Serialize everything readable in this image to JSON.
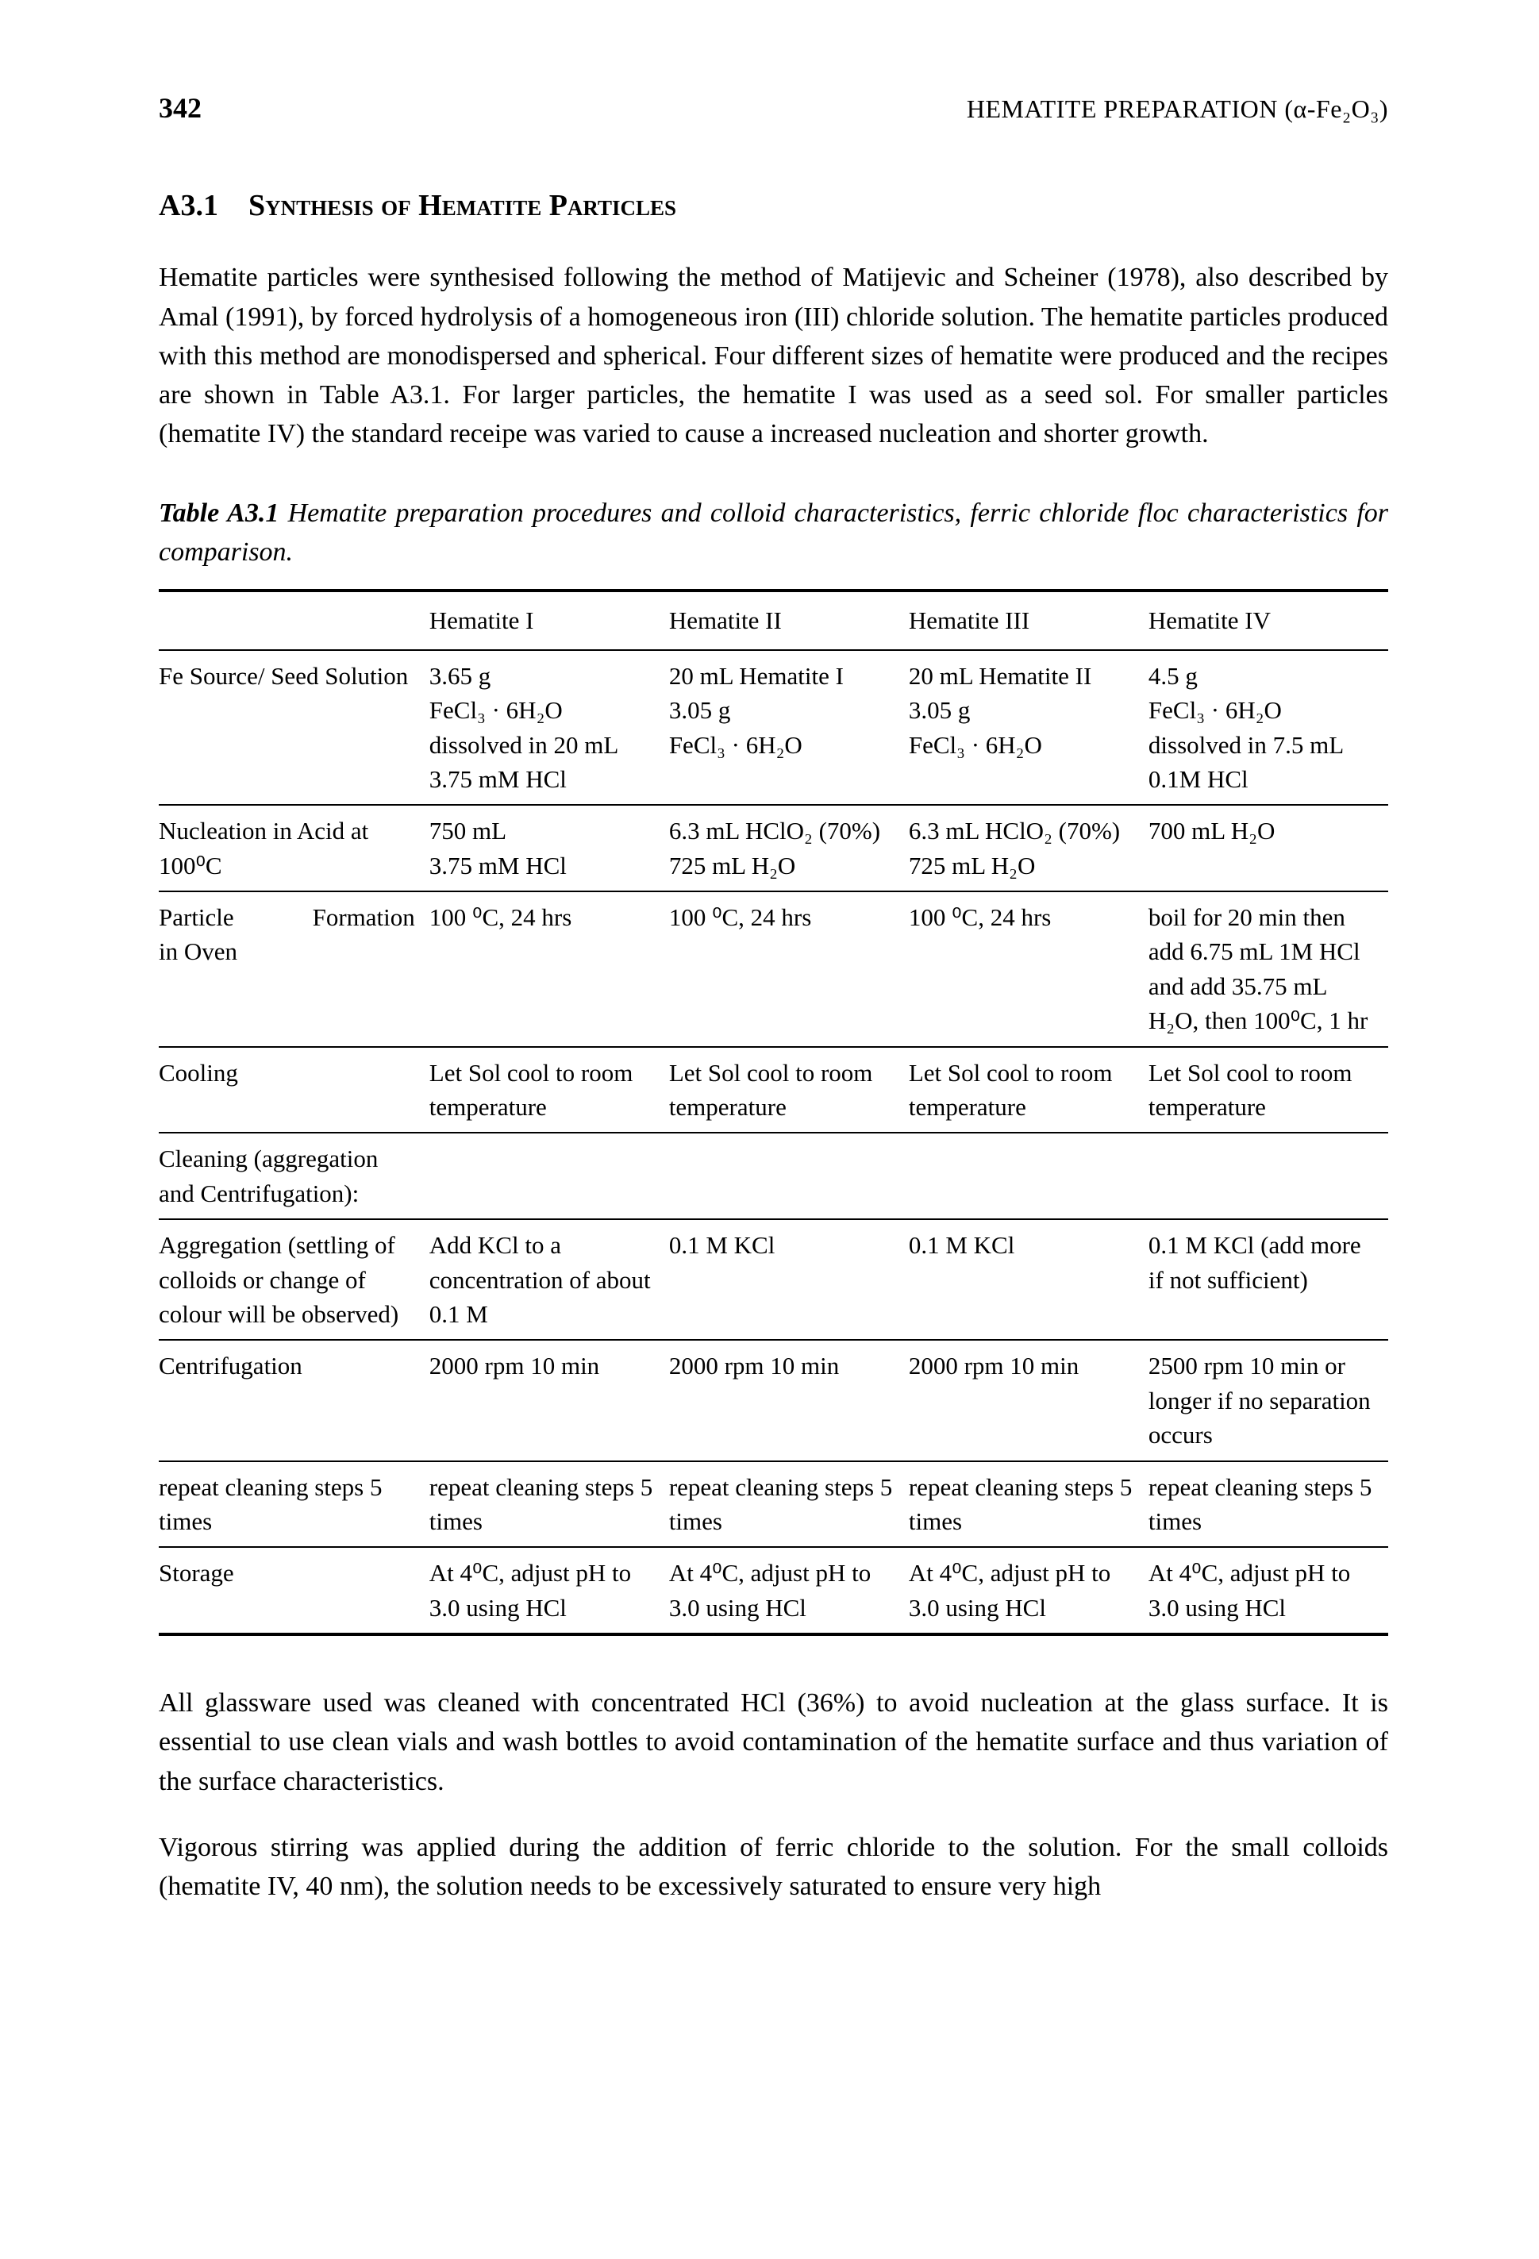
{
  "page_number": "342",
  "running_head": "HEMATITE PREPARATION (α-Fe₂O₃)",
  "section": {
    "number": "A3.1",
    "title_smallcaps_1": "Synthesis of Hematite Particles"
  },
  "paragraphs": {
    "p1": "Hematite particles were synthesised following the method of Matijevic and Scheiner (1978), also described by Amal (1991), by forced hydrolysis of a homogeneous iron (III) chloride solution. The hematite particles produced with this method are monodispersed and spherical. Four different sizes of hematite were produced and the recipes are shown in Table A3.1. For larger particles, the hematite I was used as a seed sol. For smaller particles (hematite IV) the standard receipe was varied to cause a increased nucleation and shorter growth.",
    "p2": "All glassware used was cleaned with concentrated HCl (36%) to avoid nucleation at the glass surface. It is essential to use clean vials and wash bottles to avoid contamination of the hematite surface and thus variation of the surface characteristics.",
    "p3": "Vigorous stirring was applied during the addition of ferric chloride to the solution. For the small colloids (hematite IV, 40 nm), the solution needs to be excessively saturated to ensure very high"
  },
  "table_caption": {
    "label": "Table A3.1",
    "text": "Hematite preparation procedures and colloid characteristics, ferric chloride floc characteristics for comparison."
  },
  "table": {
    "columns": [
      "",
      "Hematite I",
      "Hematite II",
      "Hematite III",
      "Hematite IV"
    ],
    "rows": [
      {
        "head": "Fe Source/ Seed Solution",
        "c1": [
          "3.65 g",
          "FeCl₃ · 6H₂O",
          "dissolved in 20 mL",
          "3.75 mM HCl"
        ],
        "c2": [
          "20 mL Hematite I",
          "3.05 g",
          "FeCl₃ · 6H₂O"
        ],
        "c3": [
          "20 mL Hematite II",
          "3.05 g",
          "FeCl₃ · 6H₂O"
        ],
        "c4": [
          "4.5 g",
          "FeCl₃ · 6H₂O",
          "dissolved in 7.5 mL",
          "0.1M HCl"
        ],
        "sep": true
      },
      {
        "head": "Nucleation in Acid at 100⁰C",
        "c1": [
          "750 mL",
          "3.75 mM HCl"
        ],
        "c2": [
          "6.3 mL HClO₂ (70%)",
          "725 mL H₂O"
        ],
        "c3": [
          "6.3 mL HClO₂ (70%)",
          "725 mL H₂O"
        ],
        "c4": [
          "700 mL H₂O"
        ],
        "sep": true
      },
      {
        "head_parts": [
          "Particle",
          "Formation",
          "in Oven"
        ],
        "c1": [
          "100 ⁰C, 24 hrs"
        ],
        "c2": [
          "100 ⁰C, 24 hrs"
        ],
        "c3": [
          "100 ⁰C, 24 hrs"
        ],
        "c4": [
          "boil for 20 min then add 6.75 mL 1M HCl and add 35.75 mL H₂O, then 100⁰C, 1 hr"
        ],
        "sep": true
      },
      {
        "head": "Cooling",
        "c1": [
          "Let Sol cool to room temperature"
        ],
        "c2": [
          "Let Sol cool to room temperature"
        ],
        "c3": [
          "Let Sol cool to room temperature"
        ],
        "c4": [
          "Let Sol cool to room temperature"
        ],
        "sep": true
      },
      {
        "head": "Cleaning (aggregation and Centrifugation):",
        "c1": [
          ""
        ],
        "c2": [
          ""
        ],
        "c3": [
          ""
        ],
        "c4": [
          ""
        ],
        "sep": true
      },
      {
        "head": "Aggregation (settling of colloids or change of colour will be observed)",
        "c1": [
          "Add KCl to a concentration of about 0.1 M"
        ],
        "c2": [
          "0.1 M KCl"
        ],
        "c3": [
          "0.1 M KCl"
        ],
        "c4": [
          "0.1 M KCl (add more if not sufficient)"
        ],
        "sep": true
      },
      {
        "head": "Centrifugation",
        "c1": [
          "2000 rpm 10 min"
        ],
        "c2": [
          "2000 rpm 10 min"
        ],
        "c3": [
          "2000 rpm 10 min"
        ],
        "c4": [
          "2500 rpm 10 min or longer if no separation occurs"
        ],
        "sep": true
      },
      {
        "head": "repeat cleaning steps 5 times",
        "c1": [
          "repeat cleaning steps 5 times"
        ],
        "c2": [
          "repeat cleaning steps 5 times"
        ],
        "c3": [
          "repeat cleaning steps 5 times"
        ],
        "c4": [
          "repeat cleaning steps 5 times"
        ],
        "sep": true
      },
      {
        "head": "Storage",
        "c1": [
          "At 4⁰C, adjust pH to 3.0 using HCl"
        ],
        "c2": [
          "At 4⁰C, adjust pH to 3.0 using HCl"
        ],
        "c3": [
          "At 4⁰C, adjust pH to 3.0 using HCl"
        ],
        "c4": [
          "At 4⁰C, adjust pH to 3.0 using HCl"
        ],
        "last": true
      }
    ]
  }
}
